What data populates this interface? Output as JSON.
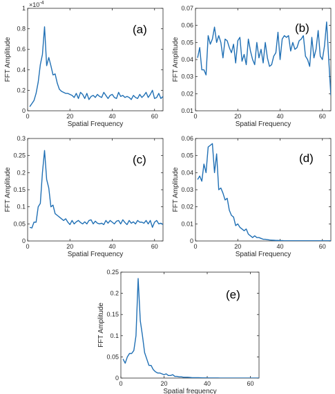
{
  "chart_data": [
    {
      "type": "line",
      "panel_label": "(a)",
      "xlabel": "Spatial Frequency",
      "ylabel": "FFT Amplitude",
      "xlim": [
        0,
        64
      ],
      "ylim": [
        0,
        1
      ],
      "exponent_label": "×10",
      "exponent_power": "-4",
      "xticks": [
        0,
        20,
        40,
        60
      ],
      "xtick_labels": [
        "0",
        "20",
        "40",
        "60"
      ],
      "yticks": [
        0,
        0.2,
        0.4,
        0.6,
        0.8,
        1
      ],
      "ytick_labels": [
        "0",
        "0.2",
        "0.4",
        "0.6",
        "0.8",
        "1"
      ],
      "color": "#1f6fb4",
      "series": [
        {
          "x": [
            1,
            2,
            3,
            4,
            5,
            6,
            7,
            8,
            9,
            10,
            11,
            12,
            13,
            14,
            15,
            16,
            17,
            18,
            19,
            20,
            21,
            22,
            23,
            24,
            25,
            26,
            27,
            28,
            29,
            30,
            31,
            32,
            33,
            34,
            35,
            36,
            37,
            38,
            39,
            40,
            41,
            42,
            43,
            44,
            45,
            46,
            47,
            48,
            49,
            50,
            51,
            52,
            53,
            54,
            55,
            56,
            57,
            58,
            59,
            60,
            61,
            62,
            63,
            64
          ],
          "values": [
            0.04,
            0.07,
            0.1,
            0.17,
            0.28,
            0.45,
            0.55,
            0.82,
            0.44,
            0.52,
            0.44,
            0.35,
            0.36,
            0.27,
            0.21,
            0.19,
            0.18,
            0.17,
            0.17,
            0.16,
            0.15,
            0.13,
            0.17,
            0.12,
            0.18,
            0.16,
            0.12,
            0.17,
            0.11,
            0.14,
            0.15,
            0.13,
            0.16,
            0.14,
            0.13,
            0.18,
            0.15,
            0.12,
            0.15,
            0.16,
            0.13,
            0.12,
            0.18,
            0.14,
            0.15,
            0.13,
            0.14,
            0.13,
            0.11,
            0.15,
            0.13,
            0.12,
            0.16,
            0.13,
            0.15,
            0.18,
            0.13,
            0.16,
            0.2,
            0.12,
            0.13,
            0.17,
            0.12,
            0.14
          ]
        }
      ]
    },
    {
      "type": "line",
      "panel_label": "(b)",
      "xlabel": "Spatial Frequency",
      "ylabel": "FFT Amplitude",
      "xlim": [
        0,
        64
      ],
      "ylim": [
        0.01,
        0.07
      ],
      "xticks": [
        0,
        20,
        40,
        60
      ],
      "xtick_labels": [
        "0",
        "20",
        "40",
        "60"
      ],
      "yticks": [
        0.01,
        0.02,
        0.03,
        0.04,
        0.05,
        0.06,
        0.07
      ],
      "ytick_labels": [
        "0.01",
        "0.02",
        "0.03",
        "0.04",
        "0.05",
        "0.06",
        "0.07"
      ],
      "color": "#1f6fb4",
      "series": [
        {
          "x": [
            1,
            2,
            3,
            4,
            5,
            6,
            7,
            8,
            9,
            10,
            11,
            12,
            13,
            14,
            15,
            16,
            17,
            18,
            19,
            20,
            21,
            22,
            23,
            24,
            25,
            26,
            27,
            28,
            29,
            30,
            31,
            32,
            33,
            34,
            35,
            36,
            37,
            38,
            39,
            40,
            41,
            42,
            43,
            44,
            45,
            46,
            47,
            48,
            49,
            50,
            51,
            52,
            53,
            54,
            55,
            56,
            57,
            58,
            59,
            60,
            61,
            62,
            63,
            64
          ],
          "values": [
            0.041,
            0.047,
            0.034,
            0.034,
            0.031,
            0.054,
            0.049,
            0.052,
            0.059,
            0.05,
            0.054,
            0.05,
            0.041,
            0.052,
            0.051,
            0.047,
            0.044,
            0.049,
            0.038,
            0.051,
            0.053,
            0.039,
            0.043,
            0.037,
            0.052,
            0.045,
            0.04,
            0.037,
            0.05,
            0.041,
            0.046,
            0.038,
            0.05,
            0.041,
            0.036,
            0.037,
            0.042,
            0.044,
            0.056,
            0.04,
            0.052,
            0.054,
            0.053,
            0.054,
            0.045,
            0.05,
            0.046,
            0.047,
            0.051,
            0.052,
            0.054,
            0.042,
            0.04,
            0.036,
            0.053,
            0.041,
            0.046,
            0.057,
            0.042,
            0.04,
            0.048,
            0.062,
            0.04,
            0.019
          ]
        }
      ]
    },
    {
      "type": "line",
      "panel_label": "(c)",
      "xlabel": "Spatial Frequency",
      "ylabel": "FFT Amplitude",
      "xlim": [
        0,
        64
      ],
      "ylim": [
        0,
        0.3
      ],
      "xticks": [
        0,
        20,
        40,
        60
      ],
      "xtick_labels": [
        "0",
        "20",
        "40",
        "60"
      ],
      "yticks": [
        0,
        0.05,
        0.1,
        0.15,
        0.2,
        0.25,
        0.3
      ],
      "ytick_labels": [
        "0",
        "0.05",
        "0.1",
        "0.15",
        "0.2",
        "0.25",
        "0.3"
      ],
      "color": "#1f6fb4",
      "series": [
        {
          "x": [
            1,
            2,
            3,
            4,
            5,
            6,
            7,
            8,
            9,
            10,
            11,
            12,
            13,
            14,
            15,
            16,
            17,
            18,
            19,
            20,
            21,
            22,
            23,
            24,
            25,
            26,
            27,
            28,
            29,
            30,
            31,
            32,
            33,
            34,
            35,
            36,
            37,
            38,
            39,
            40,
            41,
            42,
            43,
            44,
            45,
            46,
            47,
            48,
            49,
            50,
            51,
            52,
            53,
            54,
            55,
            56,
            57,
            58,
            59,
            60,
            61,
            62,
            63,
            64
          ],
          "values": [
            0.04,
            0.038,
            0.055,
            0.055,
            0.1,
            0.11,
            0.2,
            0.265,
            0.18,
            0.155,
            0.1,
            0.105,
            0.08,
            0.075,
            0.07,
            0.065,
            0.06,
            0.065,
            0.055,
            0.048,
            0.06,
            0.05,
            0.056,
            0.06,
            0.054,
            0.05,
            0.056,
            0.05,
            0.06,
            0.062,
            0.05,
            0.058,
            0.052,
            0.05,
            0.052,
            0.048,
            0.06,
            0.052,
            0.06,
            0.055,
            0.05,
            0.058,
            0.06,
            0.05,
            0.062,
            0.054,
            0.048,
            0.06,
            0.052,
            0.056,
            0.05,
            0.06,
            0.055,
            0.055,
            0.052,
            0.06,
            0.05,
            0.06,
            0.04,
            0.055,
            0.06,
            0.05,
            0.052,
            0.048
          ]
        }
      ]
    },
    {
      "type": "line",
      "panel_label": "(d)",
      "xlabel": "Spatial Frequency",
      "ylabel": "FFT Amplitude",
      "xlim": [
        0,
        64
      ],
      "ylim": [
        0,
        0.06
      ],
      "xticks": [
        0,
        20,
        40,
        60
      ],
      "xtick_labels": [
        "0",
        "20",
        "40",
        "60"
      ],
      "yticks": [
        0,
        0.01,
        0.02,
        0.03,
        0.04,
        0.05,
        0.06
      ],
      "ytick_labels": [
        "0",
        "0.01",
        "0.02",
        "0.03",
        "0.04",
        "0.05",
        "0.06"
      ],
      "color": "#1f6fb4",
      "series": [
        {
          "x": [
            1,
            2,
            3,
            4,
            5,
            6,
            7,
            8,
            9,
            10,
            11,
            12,
            13,
            14,
            15,
            16,
            17,
            18,
            19,
            20,
            21,
            22,
            23,
            24,
            25,
            26,
            27,
            28,
            29,
            30,
            31,
            32,
            33,
            34,
            35,
            36,
            37,
            38,
            39,
            40,
            41,
            42,
            43,
            44,
            45,
            46,
            47,
            48,
            49,
            50,
            51,
            52,
            53,
            54,
            55,
            56,
            57,
            58,
            59,
            60,
            61,
            62,
            63,
            64
          ],
          "values": [
            0.036,
            0.038,
            0.035,
            0.045,
            0.04,
            0.055,
            0.056,
            0.057,
            0.04,
            0.051,
            0.03,
            0.031,
            0.028,
            0.024,
            0.025,
            0.018,
            0.015,
            0.014,
            0.009,
            0.01,
            0.008,
            0.007,
            0.006,
            0.007,
            0.004,
            0.003,
            0.002,
            0.003,
            0.002,
            0.002,
            0.0015,
            0.001,
            0.001,
            0.0008,
            0.0006,
            0.0005,
            0.0004,
            0.0003,
            0.0003,
            0.0002,
            0.0002,
            0.0001,
            0.0001,
            0.0001,
            0.0001,
            0.0001,
            0.0001,
            0.0001,
            0.0001,
            0.0001,
            0.0001,
            0.0001,
            0.0001,
            0.0001,
            0.0001,
            0.0001,
            0.0001,
            0.0001,
            0.0001,
            0.0001,
            0.0001,
            0.0001,
            0.0001,
            0.0001
          ]
        }
      ]
    },
    {
      "type": "line",
      "panel_label": "(e)",
      "xlabel": "Spatial frequency",
      "ylabel": "FFT Amplitude",
      "xlim": [
        0,
        64
      ],
      "ylim": [
        0,
        0.25
      ],
      "xticks": [
        0,
        20,
        40,
        60
      ],
      "xtick_labels": [
        "0",
        "20",
        "40",
        "60"
      ],
      "yticks": [
        0,
        0.05,
        0.1,
        0.15,
        0.2,
        0.25
      ],
      "ytick_labels": [
        "0",
        "0.05",
        "0.1",
        "0.15",
        "0.2",
        "0.25"
      ],
      "color": "#1f6fb4",
      "series": [
        {
          "x": [
            1,
            2,
            3,
            4,
            5,
            6,
            7,
            8,
            9,
            10,
            11,
            12,
            13,
            14,
            15,
            16,
            17,
            18,
            19,
            20,
            21,
            22,
            23,
            24,
            25,
            26,
            27,
            28,
            29,
            30,
            31,
            32,
            33,
            34,
            35,
            36,
            37,
            38,
            39,
            40,
            41,
            42,
            43,
            44,
            45,
            46,
            47,
            48,
            49,
            50,
            51,
            52,
            53,
            54,
            55,
            56,
            57,
            58,
            59,
            60,
            61,
            62,
            63,
            64
          ],
          "values": [
            0.045,
            0.035,
            0.05,
            0.058,
            0.058,
            0.065,
            0.1,
            0.235,
            0.135,
            0.1,
            0.06,
            0.045,
            0.03,
            0.03,
            0.02,
            0.015,
            0.012,
            0.012,
            0.01,
            0.008,
            0.01,
            0.006,
            0.006,
            0.008,
            0.004,
            0.004,
            0.003,
            0.003,
            0.002,
            0.002,
            0.002,
            0.0015,
            0.001,
            0.001,
            0.001,
            0.0008,
            0.0006,
            0.0005,
            0.0004,
            0.0004,
            0.0003,
            0.0003,
            0.0002,
            0.0002,
            0.0002,
            0.0001,
            0.0001,
            0.0001,
            0.0001,
            0.0001,
            0.0001,
            0.0001,
            0.0001,
            0.0001,
            0.0001,
            0.0001,
            0.0001,
            0.0001,
            0.0001,
            0.0001,
            0.0001,
            0.0001,
            0.0001,
            0.0001
          ]
        }
      ]
    }
  ]
}
